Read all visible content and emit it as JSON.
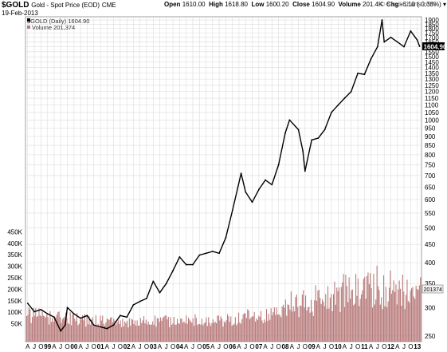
{
  "header": {
    "symbol": "$GOLD",
    "name": "Gold - Spot Price (EOD)",
    "exchange": "CME",
    "date": "19-Feb-2013",
    "open_label": "Open",
    "open": "1610.00",
    "high_label": "High",
    "high": "1618.80",
    "low_label": "Low",
    "low": "1600.20",
    "close_label": "Close",
    "close": "1604.90",
    "volume_label": "Volume",
    "volume": "201.4K",
    "chg_label": "Chg",
    "chg": "-6.10 (-0.38%)",
    "logo": "© StockCharts.com"
  },
  "legend": {
    "price": "$GOLD (Daily) 1604.90",
    "volume": "Volume 201,374"
  },
  "colors": {
    "price_line": "#000000",
    "volume_fill": "#b87a7a",
    "grid": "#dcdcdc",
    "price_box": "#000000"
  },
  "chart_data": {
    "type": "line",
    "scale": "log",
    "price_axis": {
      "ticks": [
        "1900",
        "1850",
        "1800",
        "1750",
        "1700",
        "1650",
        "1600",
        "1550",
        "1500",
        "1450",
        "1400",
        "1350",
        "1300",
        "1250",
        "1200",
        "1150",
        "1100",
        "1050",
        "1000",
        "950",
        "900",
        "850",
        "800",
        "750",
        "700",
        "650",
        "600",
        "550",
        "500",
        "450",
        "400",
        "350",
        "300",
        "250"
      ],
      "current_label": "1604.90"
    },
    "volume_axis": {
      "ticks": [
        "450K",
        "400K",
        "350K",
        "300K",
        "250K",
        "200K",
        "150K",
        "100K",
        "50K"
      ],
      "current_label": "201374"
    },
    "x_ticks": [
      "A",
      "J",
      "O",
      "99",
      "A",
      "J",
      "O",
      "00",
      "A",
      "J",
      "O",
      "01",
      "A",
      "J",
      "O",
      "02",
      "A",
      "J",
      "O",
      "03",
      "A",
      "J",
      "O",
      "04",
      "A",
      "J",
      "O",
      "05",
      "A",
      "J",
      "O",
      "06",
      "A",
      "J",
      "O",
      "07",
      "A",
      "J",
      "O",
      "08",
      "A",
      "J",
      "O",
      "09",
      "A",
      "J",
      "O",
      "10",
      "A",
      "J",
      "O",
      "11",
      "A",
      "J",
      "O",
      "12",
      "A",
      "J",
      "O",
      "13"
    ],
    "price_series": {
      "name": "$GOLD",
      "dates": [
        "1998-04",
        "1998-07",
        "1998-10",
        "1999-01",
        "1999-04",
        "1999-07",
        "1999-09",
        "1999-10",
        "2000-01",
        "2000-04",
        "2000-07",
        "2000-10",
        "2001-01",
        "2001-04",
        "2001-07",
        "2001-10",
        "2002-01",
        "2002-04",
        "2002-07",
        "2002-10",
        "2003-01",
        "2003-04",
        "2003-07",
        "2003-10",
        "2004-01",
        "2004-04",
        "2004-07",
        "2004-10",
        "2005-01",
        "2005-04",
        "2005-07",
        "2005-10",
        "2006-01",
        "2006-05",
        "2006-07",
        "2006-10",
        "2007-01",
        "2007-04",
        "2007-07",
        "2007-10",
        "2008-01",
        "2008-03",
        "2008-07",
        "2008-09",
        "2008-10",
        "2009-01",
        "2009-04",
        "2009-07",
        "2009-10",
        "2010-01",
        "2010-04",
        "2010-07",
        "2010-10",
        "2011-01",
        "2011-04",
        "2011-07",
        "2011-09",
        "2011-10",
        "2012-01",
        "2012-04",
        "2012-07",
        "2012-10",
        "2013-01",
        "2013-02"
      ],
      "values": [
        308,
        292,
        296,
        288,
        282,
        258,
        268,
        300,
        288,
        280,
        285,
        268,
        265,
        262,
        268,
        285,
        282,
        305,
        312,
        318,
        355,
        330,
        350,
        380,
        415,
        395,
        395,
        420,
        425,
        430,
        425,
        470,
        560,
        710,
        630,
        590,
        640,
        680,
        660,
        750,
        920,
        1000,
        940,
        820,
        720,
        880,
        890,
        940,
        1050,
        1100,
        1150,
        1200,
        1350,
        1340,
        1480,
        1600,
        1900,
        1650,
        1700,
        1650,
        1600,
        1770,
        1670,
        1605
      ]
    },
    "volume_series": {
      "name": "Volume",
      "dates": [
        "1998-04",
        "1999-01",
        "2000-01",
        "2001-01",
        "2002-01",
        "2003-01",
        "2004-01",
        "2005-01",
        "2006-01",
        "2007-01",
        "2008-01",
        "2009-01",
        "2010-01",
        "2011-01",
        "2012-01",
        "2013-02"
      ],
      "values": [
        90000,
        75000,
        70000,
        60000,
        55000,
        60000,
        60000,
        65000,
        70000,
        85000,
        130000,
        150000,
        180000,
        220000,
        200000,
        200000
      ]
    }
  }
}
